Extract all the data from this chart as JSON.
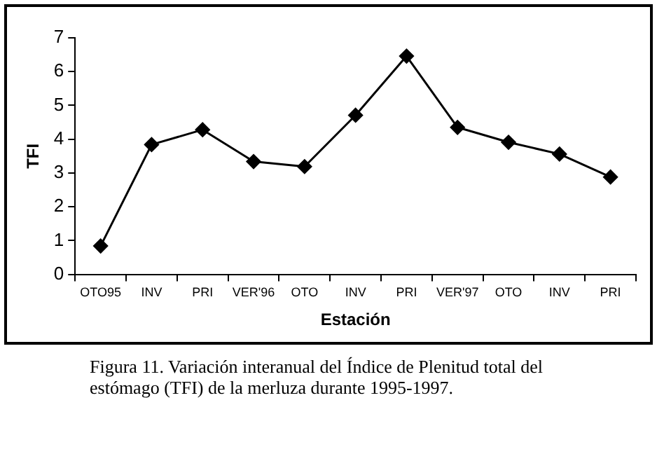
{
  "chart_data": {
    "type": "line",
    "xlabel": "Estación",
    "ylabel": "TFI",
    "categories": [
      "OTO95",
      "INV",
      "PRI",
      "VER'96",
      "OTO",
      "INV",
      "PRI",
      "VER'97",
      "OTO",
      "INV",
      "PRI"
    ],
    "series": [
      {
        "color": "#000000",
        "values": [
          0.84,
          3.84,
          4.28,
          3.34,
          3.19,
          4.71,
          6.46,
          4.35,
          3.91,
          3.56,
          2.88
        ]
      }
    ],
    "ylim": [
      0,
      7
    ],
    "yticks": [
      0,
      1,
      2,
      3,
      4,
      5,
      6,
      7
    ],
    "grid": false,
    "legend": false,
    "marker": "diamond",
    "line_style": "solid",
    "annotations": [
      "Figura 11. Variación interanual del Índice de Plenitud total del estómago (TFI) de la merluza durante 1995-1997."
    ]
  }
}
